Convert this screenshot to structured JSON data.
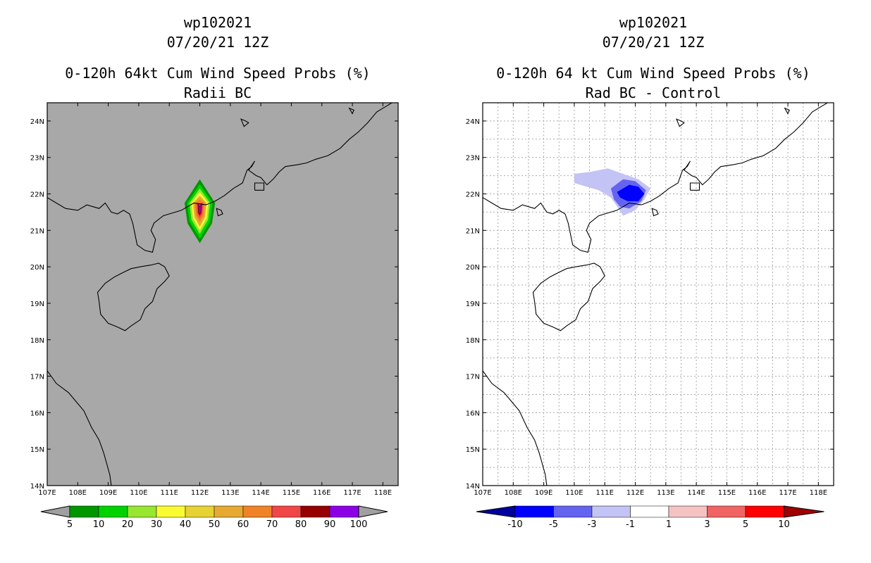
{
  "panels": [
    {
      "id": "left",
      "storm_id": "wp102021",
      "datetime": "07/20/21 12Z",
      "title": "0-120h 64kt Cum Wind Speed Probs (%)",
      "subtitle": "Radii BC",
      "map_background": "#a8a8a8",
      "grid": false,
      "colorbar_labels": [
        "5",
        "10",
        "20",
        "30",
        "40",
        "50",
        "60",
        "70",
        "80",
        "90",
        "100"
      ],
      "colorbar_colors": [
        "#a0a0a0",
        "#009600",
        "#00d200",
        "#96e632",
        "#fafa32",
        "#e6d232",
        "#e6aa32",
        "#f08228",
        "#f04646",
        "#960000",
        "#8c00e6",
        "#a0a0a0"
      ]
    },
    {
      "id": "right",
      "storm_id": "wp102021",
      "datetime": "07/20/21 12Z",
      "title": "0-120h 64 kt Cum Wind Speed Probs (%)",
      "subtitle": "Rad BC - Control",
      "map_background": "#ffffff",
      "grid": true,
      "colorbar_labels": [
        "-10",
        "-5",
        "-3",
        "-1",
        "1",
        "3",
        "5",
        "10"
      ],
      "colorbar_colors": [
        "#0000a0",
        "#0000ff",
        "#6464f0",
        "#c3c3f5",
        "#ffffff",
        "#f5c3c3",
        "#f06464",
        "#ff0000",
        "#a00000"
      ]
    }
  ],
  "axes": {
    "lon_labels": [
      "107E",
      "108E",
      "109E",
      "110E",
      "111E",
      "112E",
      "113E",
      "114E",
      "115E",
      "116E",
      "117E",
      "118E"
    ],
    "lat_labels": [
      "14N",
      "15N",
      "16N",
      "17N",
      "18N",
      "19N",
      "20N",
      "21N",
      "22N",
      "23N",
      "24N"
    ],
    "lon_range": [
      107,
      118.5
    ],
    "lat_range": [
      14,
      24.5
    ]
  }
}
